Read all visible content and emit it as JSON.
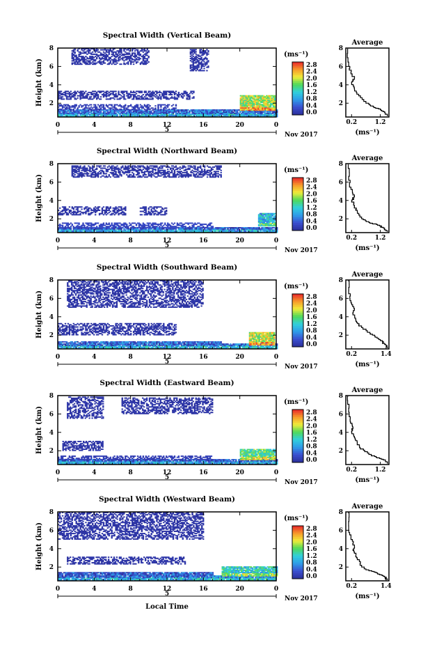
{
  "chart_data": [
    {
      "type": "heatmap",
      "title": "Spectral Width (Vertical Beam)",
      "ylabel": "Height (km)",
      "xticks": [
        "0",
        "4",
        "8",
        "12",
        "16",
        "20",
        "0"
      ],
      "ylim": [
        0.5,
        8
      ],
      "yticks": [
        "2",
        "4",
        "6",
        "8"
      ],
      "date_marker": "5",
      "date_label": "Nov 2017",
      "colorbar": {
        "unit": "(ms⁻¹)",
        "ticks": [
          "2.8",
          "2.4",
          "2.0",
          "1.6",
          "1.2",
          "0.8",
          "0.4",
          "0.0"
        ]
      },
      "blocks": [
        {
          "t0": 0,
          "t1": 24,
          "h0": 0.5,
          "h1": 1.3,
          "w": 0.5
        },
        {
          "t0": 0,
          "t1": 13,
          "h0": 1.3,
          "h1": 1.8,
          "w": 0.2
        },
        {
          "t0": 0,
          "t1": 15,
          "h0": 2.4,
          "h1": 3.3,
          "w": 0.1
        },
        {
          "t0": 1.5,
          "t1": 10,
          "h0": 6.2,
          "h1": 7.9,
          "w": 0.1
        },
        {
          "t0": 14.5,
          "t1": 16.5,
          "h0": 5.5,
          "h1": 7.9,
          "w": 0.1
        },
        {
          "t0": 20,
          "t1": 23.8,
          "h0": 1.2,
          "h1": 2.8,
          "w": 1.8
        }
      ],
      "average": {
        "title": "Average",
        "xlabel": "(ms⁻¹)",
        "xticks": [
          "0.2",
          "1.2"
        ],
        "xlim": [
          0,
          1.5
        ],
        "ylim": [
          0.5,
          8
        ],
        "yticks": [
          "2",
          "4",
          "6",
          "8"
        ],
        "profile": [
          [
            1.45,
            0.6
          ],
          [
            1.35,
            1.0
          ],
          [
            1.2,
            1.3
          ],
          [
            0.95,
            1.6
          ],
          [
            0.7,
            2.0
          ],
          [
            0.45,
            2.8
          ],
          [
            0.3,
            3.5
          ],
          [
            0.2,
            4.2
          ],
          [
            0.3,
            4.6
          ],
          [
            0.18,
            5.2
          ],
          [
            0.1,
            6.0
          ],
          [
            0.08,
            7.9
          ]
        ]
      }
    },
    {
      "type": "heatmap",
      "title": "Spectral Width (Northward Beam)",
      "ylabel": "Height (km)",
      "xticks": [
        "0",
        "4",
        "8",
        "12",
        "16",
        "20",
        "0"
      ],
      "ylim": [
        0.5,
        8
      ],
      "yticks": [
        "2",
        "4",
        "6",
        "8"
      ],
      "date_marker": "5",
      "date_label": "Nov 2017",
      "colorbar": {
        "unit": "(ms⁻¹)",
        "ticks": [
          "2.8",
          "2.4",
          "2.0",
          "1.6",
          "1.2",
          "0.8",
          "0.4",
          "0.0"
        ]
      },
      "blocks": [
        {
          "t0": 0,
          "t1": 24,
          "h0": 0.5,
          "h1": 1.0,
          "w": 0.4
        },
        {
          "t0": 0,
          "t1": 17,
          "h0": 1.0,
          "h1": 1.5,
          "w": 0.3
        },
        {
          "t0": 0,
          "t1": 7.5,
          "h0": 2.4,
          "h1": 3.3,
          "w": 0.1
        },
        {
          "t0": 9,
          "t1": 12,
          "h0": 2.4,
          "h1": 3.3,
          "w": 0.1
        },
        {
          "t0": 1.5,
          "t1": 18,
          "h0": 6.5,
          "h1": 7.8,
          "w": 0.1
        },
        {
          "t0": 22,
          "t1": 23.8,
          "h0": 1.2,
          "h1": 2.6,
          "w": 1.0
        }
      ],
      "average": {
        "title": "Average",
        "xlabel": "(ms⁻¹)",
        "xticks": [
          "0.2",
          "1.2"
        ],
        "xlim": [
          0,
          1.5
        ],
        "ylim": [
          0.5,
          8
        ],
        "yticks": [
          "2",
          "4",
          "6",
          "8"
        ],
        "profile": [
          [
            1.45,
            0.6
          ],
          [
            1.3,
            1.0
          ],
          [
            1.1,
            1.3
          ],
          [
            0.8,
            1.6
          ],
          [
            0.55,
            2.0
          ],
          [
            0.4,
            2.8
          ],
          [
            0.3,
            3.3
          ],
          [
            0.22,
            4.0
          ],
          [
            0.3,
            4.4
          ],
          [
            0.18,
            5.2
          ],
          [
            0.1,
            6.2
          ],
          [
            0.08,
            7.9
          ]
        ]
      }
    },
    {
      "type": "heatmap",
      "title": "Spectral Width (Southward Beam)",
      "ylabel": "Height (km)",
      "xticks": [
        "0",
        "4",
        "8",
        "12",
        "16",
        "20",
        "0"
      ],
      "ylim": [
        0.5,
        8
      ],
      "yticks": [
        "2",
        "4",
        "6",
        "8"
      ],
      "date_marker": "5",
      "date_label": "Nov 2017",
      "colorbar": {
        "unit": "(ms⁻¹)",
        "ticks": [
          "2.8",
          "2.4",
          "2.0",
          "1.6",
          "1.2",
          "0.8",
          "0.4",
          "0.0"
        ]
      },
      "blocks": [
        {
          "t0": 0,
          "t1": 18,
          "h0": 0.5,
          "h1": 1.3,
          "w": 0.5
        },
        {
          "t0": 18,
          "t1": 24,
          "h0": 0.5,
          "h1": 1.0,
          "w": 0.6
        },
        {
          "t0": 0,
          "t1": 13,
          "h0": 2.0,
          "h1": 3.3,
          "w": 0.1
        },
        {
          "t0": 1,
          "t1": 16,
          "h0": 5.0,
          "h1": 7.9,
          "w": 0.1
        },
        {
          "t0": 21,
          "t1": 23.8,
          "h0": 0.9,
          "h1": 2.3,
          "w": 1.9
        }
      ],
      "average": {
        "title": "Average",
        "xlabel": "(ms⁻¹)",
        "xticks": [
          "0.2",
          "1.4"
        ],
        "xlim": [
          0,
          1.5
        ],
        "ylim": [
          0.5,
          8
        ],
        "yticks": [
          "2",
          "4",
          "6",
          "8"
        ],
        "profile": [
          [
            1.45,
            0.6
          ],
          [
            1.35,
            1.0
          ],
          [
            1.2,
            1.4
          ],
          [
            1.0,
            1.9
          ],
          [
            0.75,
            2.3
          ],
          [
            0.45,
            3.0
          ],
          [
            0.35,
            3.5
          ],
          [
            0.25,
            4.2
          ],
          [
            0.3,
            4.7
          ],
          [
            0.18,
            5.5
          ],
          [
            0.1,
            6.5
          ],
          [
            0.08,
            7.9
          ]
        ]
      }
    },
    {
      "type": "heatmap",
      "title": "Spectral Width (Eastward Beam)",
      "ylabel": "Height (km)",
      "xticks": [
        "0",
        "4",
        "8",
        "12",
        "16",
        "20",
        "0"
      ],
      "ylim": [
        0.5,
        8
      ],
      "yticks": [
        "2",
        "4",
        "6",
        "8"
      ],
      "date_marker": "5",
      "date_label": "Nov 2017",
      "colorbar": {
        "unit": "(ms⁻¹)",
        "ticks": [
          "2.8",
          "2.4",
          "2.0",
          "1.6",
          "1.2",
          "0.8",
          "0.4",
          "0.0"
        ]
      },
      "blocks": [
        {
          "t0": 0,
          "t1": 24,
          "h0": 0.5,
          "h1": 1.0,
          "w": 0.4
        },
        {
          "t0": 0,
          "t1": 17,
          "h0": 1.0,
          "h1": 1.4,
          "w": 0.2
        },
        {
          "t0": 0.5,
          "t1": 5,
          "h0": 2.0,
          "h1": 3.0,
          "w": 0.1
        },
        {
          "t0": 1,
          "t1": 5,
          "h0": 5.5,
          "h1": 7.9,
          "w": 0.1
        },
        {
          "t0": 7,
          "t1": 17,
          "h0": 6.0,
          "h1": 7.8,
          "w": 0.1
        },
        {
          "t0": 20,
          "t1": 23.8,
          "h0": 1.0,
          "h1": 2.2,
          "w": 1.5
        }
      ],
      "average": {
        "title": "Average",
        "xlabel": "(ms⁻¹)",
        "xticks": [
          "0.2",
          "1.2"
        ],
        "xlim": [
          0,
          1.5
        ],
        "ylim": [
          0.5,
          8
        ],
        "yticks": [
          "2",
          "4",
          "6",
          "8"
        ],
        "profile": [
          [
            1.45,
            0.6
          ],
          [
            1.3,
            1.0
          ],
          [
            1.05,
            1.3
          ],
          [
            0.8,
            1.6
          ],
          [
            0.5,
            2.2
          ],
          [
            0.4,
            2.8
          ],
          [
            0.3,
            3.4
          ],
          [
            0.2,
            4.0
          ],
          [
            0.25,
            4.4
          ],
          [
            0.15,
            5.2
          ],
          [
            0.1,
            6.2
          ],
          [
            0.08,
            7.9
          ]
        ]
      }
    },
    {
      "type": "heatmap",
      "title": "Spectral Width (Westward Beam)",
      "ylabel": "Height (km)",
      "xticks": [
        "0",
        "4",
        "8",
        "12",
        "16",
        "20",
        "0"
      ],
      "xlabel": "Local Time",
      "ylim": [
        0.5,
        8
      ],
      "yticks": [
        "2",
        "4",
        "6",
        "8"
      ],
      "date_marker": "5",
      "date_label": "Nov 2017",
      "colorbar": {
        "unit": "(ms⁻¹)",
        "ticks": [
          "2.8",
          "2.4",
          "2.0",
          "1.6",
          "1.2",
          "0.8",
          "0.4",
          "0.0"
        ]
      },
      "blocks": [
        {
          "t0": 0,
          "t1": 17,
          "h0": 0.5,
          "h1": 1.4,
          "w": 0.45
        },
        {
          "t0": 17,
          "t1": 24,
          "h0": 0.5,
          "h1": 1.0,
          "w": 0.7
        },
        {
          "t0": 1,
          "t1": 14,
          "h0": 2.3,
          "h1": 3.1,
          "w": 0.1
        },
        {
          "t0": 0,
          "t1": 16,
          "h0": 5.0,
          "h1": 7.9,
          "w": 0.1
        },
        {
          "t0": 18,
          "t1": 24,
          "h0": 1.0,
          "h1": 2.0,
          "w": 1.2
        }
      ],
      "average": {
        "title": "Average",
        "xlabel": "(ms⁻¹)",
        "xticks": [
          "0.2",
          "1.4"
        ],
        "xlim": [
          0,
          1.5
        ],
        "ylim": [
          0.5,
          8
        ],
        "yticks": [
          "2",
          "4",
          "6",
          "8"
        ],
        "profile": [
          [
            1.45,
            0.6
          ],
          [
            1.3,
            1.0
          ],
          [
            1.1,
            1.3
          ],
          [
            0.8,
            1.6
          ],
          [
            0.55,
            2.0
          ],
          [
            0.4,
            2.8
          ],
          [
            0.35,
            3.2
          ],
          [
            0.25,
            3.8
          ],
          [
            0.3,
            4.2
          ],
          [
            0.18,
            5.0
          ],
          [
            0.1,
            6.0
          ],
          [
            0.08,
            7.9
          ]
        ]
      }
    }
  ]
}
